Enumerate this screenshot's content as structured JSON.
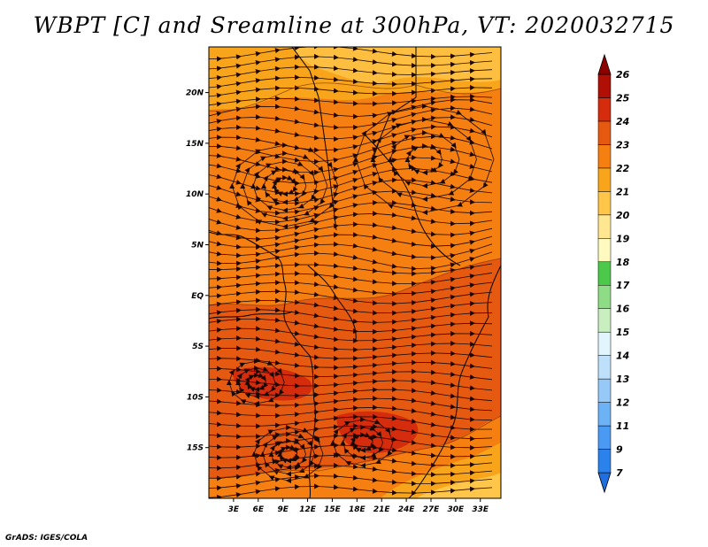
{
  "title": "WBPT [C] and Sreamline at 300hPa, VT: 2020032715",
  "credit": "GrADS: IGES/COLA",
  "chart_data": {
    "type": "heatmap",
    "variable": "WBPT [C]",
    "overlay": "streamlines",
    "level": "300hPa",
    "valid_time": "2020032715",
    "xlim": [
      0,
      35.5
    ],
    "ylim": [
      -20,
      24.5
    ],
    "x_ticks": [
      3,
      6,
      9,
      12,
      15,
      18,
      21,
      24,
      27,
      30,
      33
    ],
    "x_tick_labels": [
      "3E",
      "6E",
      "9E",
      "12E",
      "15E",
      "18E",
      "21E",
      "24E",
      "27E",
      "30E",
      "33E"
    ],
    "y_ticks": [
      20,
      15,
      10,
      5,
      0,
      -5,
      -10,
      -15
    ],
    "y_tick_labels": [
      "20N",
      "15N",
      "10N",
      "5N",
      "EQ",
      "5S",
      "10S",
      "15S"
    ],
    "colorbar": {
      "levels": [
        "7",
        "9",
        "11",
        "12",
        "13",
        "14",
        "15",
        "16",
        "17",
        "18",
        "19",
        "20",
        "21",
        "22",
        "23",
        "24",
        "25",
        "26"
      ],
      "colors": [
        "#1f6fe0",
        "#2b82ec",
        "#4a99f2",
        "#6eb2f6",
        "#96c9f8",
        "#bfe0fb",
        "#e2f4fc",
        "#c9eec0",
        "#8fdc86",
        "#4cc94a",
        "#fffac0",
        "#ffe690",
        "#ffc64a",
        "#f8a51c",
        "#f57f10",
        "#e55a10",
        "#d42c0c",
        "#b00f05",
        "#8c0000"
      ]
    },
    "field_regions": [
      {
        "value": "21-22",
        "desc": "far north edge"
      },
      {
        "value": "22-23",
        "desc": "northern and central band"
      },
      {
        "value": "23-24",
        "desc": "equatorial to southern Africa"
      },
      {
        "value": "22-23",
        "desc": "southeast corner"
      }
    ]
  }
}
